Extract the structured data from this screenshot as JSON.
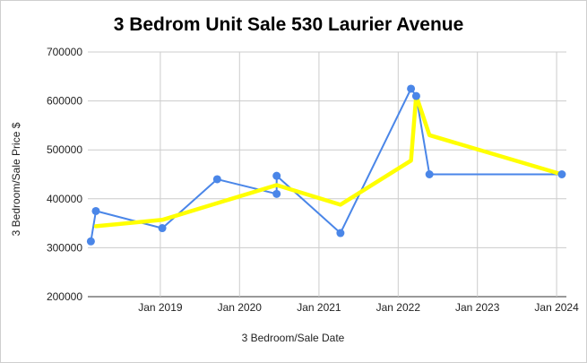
{
  "chart_data": {
    "type": "line",
    "title": "3 Bedrom Unit Sale 530 Laurier Avenue",
    "xlabel": "3 Bedroom/Sale Date",
    "ylabel": "3 Bedroom/Sale Price $",
    "ylim": [
      200000,
      700000
    ],
    "y_ticks": [
      "700000",
      "600000",
      "500000",
      "400000",
      "300000",
      "200000"
    ],
    "x_ticks": [
      "Jan 2019",
      "Jan 2020",
      "Jan 2021",
      "Jan 2022",
      "Jan 2023",
      "Jan 2024"
    ],
    "x_tick_dates": [
      "2019-01-01",
      "2020-01-01",
      "2021-01-01",
      "2022-01-01",
      "2023-01-01",
      "2024-01-01"
    ],
    "xlim": [
      "2018-02-01",
      "2024-02-15"
    ],
    "grid": true,
    "legend": "none",
    "series": [
      {
        "kind": "data",
        "color": "#4a86e8",
        "points": [
          {
            "x": "2018-02-15",
            "y": 313000
          },
          {
            "x": "2018-03-10",
            "y": 375000
          },
          {
            "x": "2019-01-10",
            "y": 340000
          },
          {
            "x": "2019-09-20",
            "y": 440000
          },
          {
            "x": "2020-06-20",
            "y": 410000
          },
          {
            "x": "2020-06-20",
            "y": 447000
          },
          {
            "x": "2021-04-10",
            "y": 330000
          },
          {
            "x": "2022-03-01",
            "y": 625000
          },
          {
            "x": "2022-03-25",
            "y": 610000
          },
          {
            "x": "2022-05-25",
            "y": 450000
          },
          {
            "x": "2024-01-25",
            "y": 450000
          }
        ]
      },
      {
        "kind": "trend",
        "color": "#ffff00",
        "points": [
          {
            "x": "2018-03-10",
            "y": 344000
          },
          {
            "x": "2019-01-10",
            "y": 357000
          },
          {
            "x": "2020-06-20",
            "y": 428000
          },
          {
            "x": "2021-04-10",
            "y": 388000
          },
          {
            "x": "2022-03-01",
            "y": 478000
          },
          {
            "x": "2022-03-25",
            "y": 611000
          },
          {
            "x": "2022-05-25",
            "y": 530000
          },
          {
            "x": "2024-01-25",
            "y": 450000
          }
        ]
      }
    ]
  }
}
